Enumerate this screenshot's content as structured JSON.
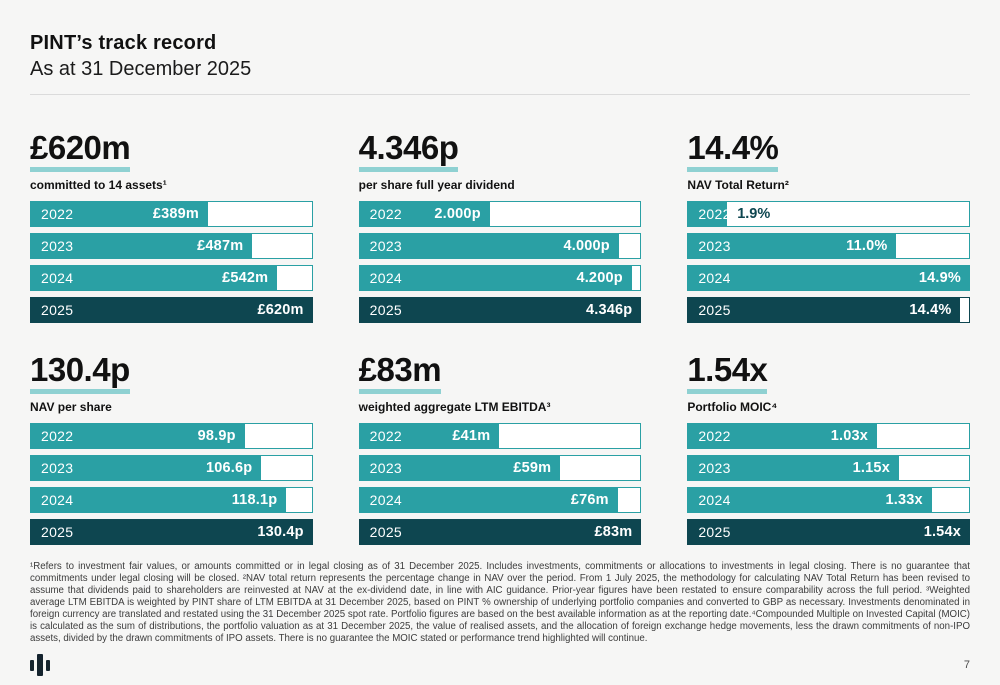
{
  "header": {
    "title": "PINT’s track record",
    "date_line": "As at 31 December 2025"
  },
  "colors": {
    "teal": "#2AA0A4",
    "dark_teal": "#0E4650",
    "light_teal_underline": "#8FD1D2",
    "background": "#F6F6F5",
    "logo": "#15242E"
  },
  "chart_data": [
    {
      "type": "bar",
      "title": "£620m",
      "subtitle": "committed to 14 assets¹",
      "categories": [
        "2022",
        "2023",
        "2024",
        "2025"
      ],
      "values": [
        389,
        487,
        542,
        620
      ],
      "value_labels": [
        "£389m",
        "£487m",
        "£542m",
        "£620m"
      ],
      "xlim": [
        0,
        620
      ]
    },
    {
      "type": "bar",
      "title": "4.346p",
      "subtitle": "per share full year dividend",
      "categories": [
        "2022",
        "2023",
        "2024",
        "2025"
      ],
      "values": [
        2.0,
        4.0,
        4.2,
        4.346
      ],
      "value_labels": [
        "2.000p",
        "4.000p",
        "4.200p",
        "4.346p"
      ],
      "xlim": [
        0,
        4.346
      ]
    },
    {
      "type": "bar",
      "title": "14.4%",
      "subtitle": "NAV Total Return²",
      "categories": [
        "2022",
        "2023",
        "2024",
        "2025"
      ],
      "values": [
        1.9,
        11.0,
        14.9,
        14.4
      ],
      "value_labels": [
        "1.9%",
        "11.0%",
        "14.9%",
        "14.4%"
      ],
      "xlim": [
        0,
        14.9
      ]
    },
    {
      "type": "bar",
      "title": "130.4p",
      "subtitle": "NAV per share",
      "categories": [
        "2022",
        "2023",
        "2024",
        "2025"
      ],
      "values": [
        98.9,
        106.6,
        118.1,
        130.4
      ],
      "value_labels": [
        "98.9p",
        "106.6p",
        "118.1p",
        "130.4p"
      ],
      "xlim": [
        0,
        130.4
      ]
    },
    {
      "type": "bar",
      "title": "£83m",
      "subtitle": "weighted aggregate LTM EBITDA³",
      "categories": [
        "2022",
        "2023",
        "2024",
        "2025"
      ],
      "values": [
        41,
        59,
        76,
        83
      ],
      "value_labels": [
        "£41m",
        "£59m",
        "£76m",
        "£83m"
      ],
      "xlim": [
        0,
        83
      ]
    },
    {
      "type": "bar",
      "title": "1.54x",
      "subtitle": "Portfolio MOIC⁴",
      "categories": [
        "2022",
        "2023",
        "2024",
        "2025"
      ],
      "values": [
        1.03,
        1.15,
        1.33,
        1.54
      ],
      "value_labels": [
        "1.03x",
        "1.15x",
        "1.33x",
        "1.54x"
      ],
      "xlim": [
        0,
        1.54
      ]
    }
  ],
  "footer": {
    "footnote": "¹Refers to investment fair values, or amounts committed or in legal closing as of 31 December 2025. Includes investments, commitments or allocations to investments in legal closing. There is no guarantee that commitments under legal closing will be closed. ²NAV total return represents the percentage change in NAV over the period. From 1 July 2025, the methodology for calculating NAV Total Return has been revised to assume that dividends paid to shareholders are reinvested at NAV at the ex-dividend date, in line with AIC guidance. Prior-year figures have been restated to ensure comparability across the full period. ³Weighted average LTM EBITDA is weighted by PINT share of LTM EBITDA at 31 December 2025, based on PINT % ownership of underlying portfolio companies and converted to GBP as necessary. Investments denominated in foreign currency are translated and restated using the 31 December 2025 spot rate. Portfolio figures are based on the best available information as at the reporting date.⁴Compounded Multiple on Invested Capital (MOIC) is calculated as the sum of distributions, the portfolio valuation as at 31 December 2025, the value of realised assets, and the allocation of foreign exchange hedge movements, less the drawn commitments of non-IPO assets, divided by the drawn commitments of IPO assets. There is no guarantee the MOIC stated or performance trend highlighted will continue.",
    "page_number": "7",
    "logo_name": "pantheon-bars-logo"
  }
}
